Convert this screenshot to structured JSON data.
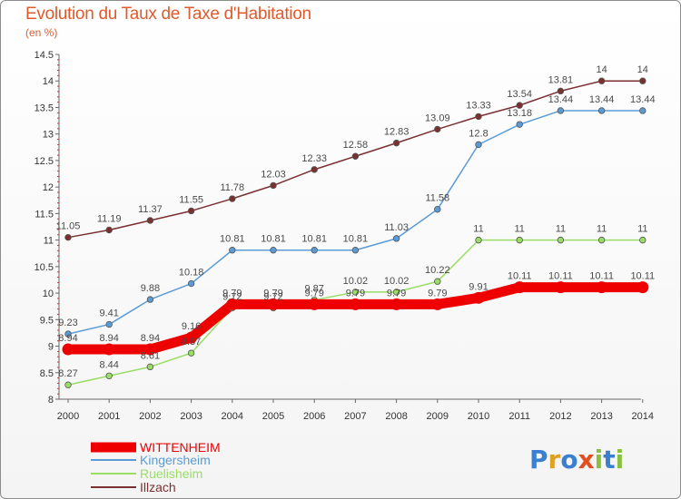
{
  "chart_data": {
    "type": "line",
    "title": "Evolution du Taux de Taxe d'Habitation",
    "subtitle": "(en %)",
    "categories": [
      "2000",
      "2001",
      "2002",
      "2003",
      "2004",
      "2005",
      "2006",
      "2007",
      "2008",
      "2009",
      "2010",
      "2011",
      "2012",
      "2013",
      "2014"
    ],
    "ylim": [
      8,
      14.5
    ],
    "yticks": [
      "8",
      "8.5",
      "9",
      "9.5",
      "10",
      "10.5",
      "11",
      "11.5",
      "12",
      "12.5",
      "13",
      "13.5",
      "14",
      "14.5"
    ],
    "grid": false,
    "legend_position": "bottom-left",
    "series": [
      {
        "name": "WITTENHEIM",
        "color": "#ee0000",
        "values": [
          8.94,
          8.94,
          8.94,
          9.16,
          9.79,
          9.79,
          9.79,
          9.79,
          9.79,
          9.79,
          9.91,
          10.11,
          10.11,
          10.11,
          10.11
        ],
        "labels": [
          "8.94",
          "8.94",
          "8.94",
          "9.16",
          "9.79",
          "9.79",
          "9.79",
          "9.79",
          "9.79",
          "9.79",
          "9.91",
          "10.11",
          "10.11",
          "10.11",
          "10.11"
        ]
      },
      {
        "name": "Kingersheim",
        "color": "#5b9bd5",
        "values": [
          9.23,
          9.41,
          9.88,
          10.18,
          10.81,
          10.81,
          10.81,
          10.81,
          11.03,
          11.58,
          12.8,
          13.18,
          13.44,
          13.44,
          13.44
        ],
        "labels": [
          "9.23",
          "9.41",
          "9.88",
          "10.18",
          "10.81",
          "10.81",
          "10.81",
          "10.81",
          "11.03",
          "11.58",
          "12.8",
          "13.18",
          "13.44",
          "13.44",
          "13.44"
        ]
      },
      {
        "name": "Ruelisheim",
        "color": "#99dd66",
        "values": [
          8.27,
          8.44,
          8.61,
          8.87,
          9.72,
          9.72,
          9.87,
          10.02,
          10.02,
          10.22,
          11,
          11,
          11,
          11,
          11
        ],
        "labels": [
          "8.27",
          "8.44",
          "8.61",
          "8.87",
          "9.72",
          "9.72",
          "9.87",
          "10.02",
          "10.02",
          "10.22",
          "11",
          "11",
          "11",
          "11",
          "11"
        ]
      },
      {
        "name": "Illzach",
        "color": "#7a3030",
        "values": [
          11.05,
          11.19,
          11.37,
          11.55,
          11.78,
          12.03,
          12.33,
          12.58,
          12.83,
          13.09,
          13.33,
          13.54,
          13.81,
          14,
          14
        ],
        "labels": [
          "11.05",
          "11.19",
          "11.37",
          "11.55",
          "11.78",
          "12.03",
          "12.33",
          "12.58",
          "12.83",
          "13.09",
          "13.33",
          "13.54",
          "13.81",
          "14",
          "14"
        ]
      }
    ]
  },
  "logo": {
    "letters": [
      "P",
      "r",
      "o",
      "x",
      "i",
      "t",
      "i"
    ],
    "colors": [
      "#3a7fd0",
      "#e0a020",
      "#3a7fd0",
      "#e05020",
      "#8ac040",
      "#3a7fd0",
      "#8ac040"
    ]
  }
}
